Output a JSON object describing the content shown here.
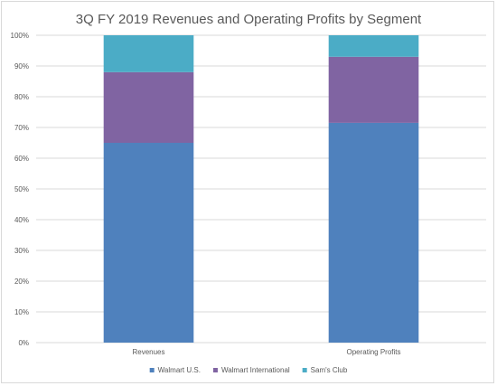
{
  "chart_data": {
    "type": "bar",
    "stacked": true,
    "title": "3Q FY 2019 Revenues and Operating Profits by Segment",
    "xlabel": "",
    "ylabel": "",
    "categories": [
      "Revenues",
      "Operating Profits"
    ],
    "series": [
      {
        "name": "Walmart U.S.",
        "color": "#4f81bd",
        "values": [
          65,
          71.5
        ]
      },
      {
        "name": "Walmart International",
        "color": "#8064a2",
        "values": [
          23,
          21.5
        ]
      },
      {
        "name": "Sam's Club",
        "color": "#4bacc6",
        "values": [
          12,
          7
        ]
      }
    ],
    "ylim": [
      0,
      100
    ],
    "yticks": [
      "0%",
      "10%",
      "20%",
      "30%",
      "40%",
      "50%",
      "60%",
      "70%",
      "80%",
      "90%",
      "100%"
    ],
    "grid": true,
    "legend_position": "bottom"
  }
}
